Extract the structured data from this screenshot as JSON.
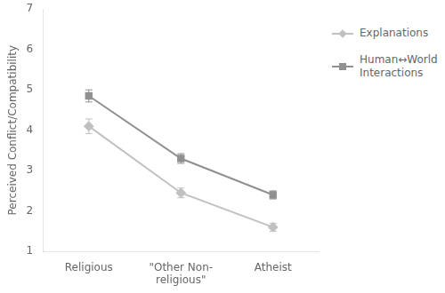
{
  "chart_data": {
    "type": "line",
    "categories": [
      "Religious",
      "\"Other Non-\nreligious\"",
      "Atheist"
    ],
    "series": [
      {
        "name": "Explanations",
        "color": "#c0c0c0",
        "marker": "diamond",
        "values": [
          4.1,
          2.45,
          1.6
        ],
        "errors": [
          0.18,
          0.12,
          0.1
        ]
      },
      {
        "name": "Human↔World\nInteractions",
        "color": "#909090",
        "marker": "square",
        "values": [
          4.85,
          3.3,
          2.4
        ],
        "errors": [
          0.15,
          0.12,
          0.1
        ]
      }
    ],
    "ylabel": "Perceived Conflict/Compatibility",
    "ylim": [
      1,
      7
    ],
    "yticks": [
      1,
      2,
      3,
      4,
      5,
      6,
      7
    ],
    "grid": false,
    "legend": "right"
  }
}
